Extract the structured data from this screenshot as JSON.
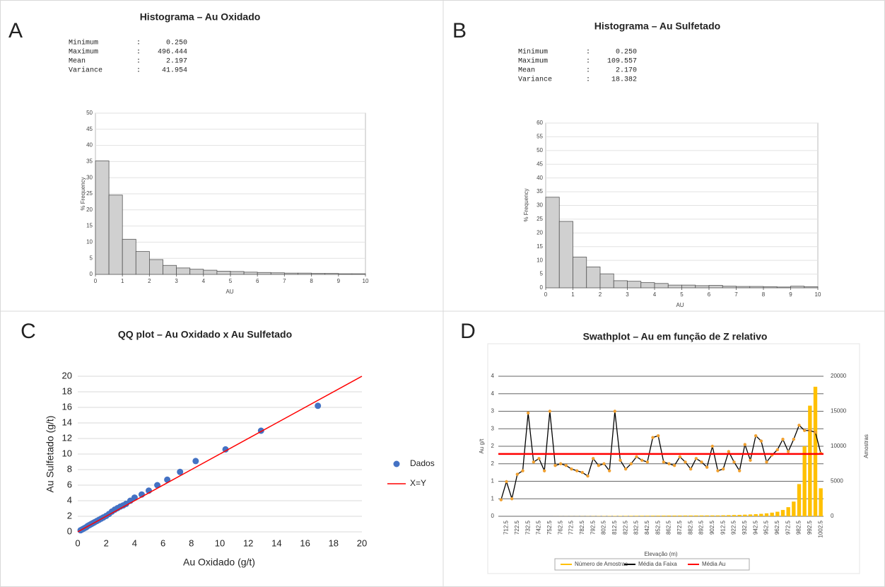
{
  "chart_data": [
    {
      "type": "histogram",
      "panel": "A",
      "title": "Histograma – Au Oxidado",
      "stats": [
        "Minimum         :      0.250",
        "Maximum         :    496.444",
        "Mean            :      2.197",
        "Variance        :     41.954"
      ],
      "x_label": "AU",
      "y_label": "% Frequency",
      "color": "#d0d0d0",
      "bins": [
        0,
        0.5,
        1,
        1.5,
        2,
        2.5,
        3,
        3.5,
        4,
        4.5,
        5,
        5.5,
        6,
        6.5,
        7,
        7.5,
        8,
        8.5,
        9,
        9.5,
        10
      ],
      "values": [
        35.2,
        24.6,
        10.9,
        7.1,
        4.6,
        2.8,
        2.0,
        1.6,
        1.3,
        1.0,
        0.9,
        0.7,
        0.6,
        0.5,
        0.4,
        0.4,
        0.3,
        0.3,
        0.2,
        0.2
      ],
      "xlim": [
        0,
        10
      ],
      "xticks": [
        0,
        1,
        2,
        3,
        4,
        5,
        6,
        7,
        8,
        9,
        10
      ],
      "ylim": [
        0,
        50
      ],
      "yticks": [
        0,
        5,
        10,
        15,
        20,
        25,
        30,
        35,
        40,
        45,
        50
      ],
      "grid": true
    },
    {
      "type": "histogram",
      "panel": "B",
      "title": "Histograma – Au Sulfetado",
      "stats": [
        "Minimum         :      0.250",
        "Maximum         :    109.557",
        "Mean            :      2.170",
        "Variance        :     18.382"
      ],
      "x_label": "AU",
      "y_label": "% Frequency",
      "color": "#d0d0d0",
      "bins": [
        0,
        0.5,
        1,
        1.5,
        2,
        2.5,
        3,
        3.5,
        4,
        4.5,
        5,
        5.5,
        6,
        6.5,
        7,
        7.5,
        8,
        8.5,
        9,
        9.5,
        10
      ],
      "values": [
        33.0,
        24.2,
        11.2,
        7.6,
        5.1,
        2.6,
        2.4,
        1.9,
        1.6,
        1.0,
        1.0,
        0.8,
        0.9,
        0.6,
        0.5,
        0.5,
        0.4,
        0.3,
        0.6,
        0.4
      ],
      "xlim": [
        0,
        10
      ],
      "xticks": [
        0,
        1,
        2,
        3,
        4,
        5,
        6,
        7,
        8,
        9,
        10
      ],
      "ylim": [
        0,
        60
      ],
      "yticks": [
        0,
        5,
        10,
        15,
        20,
        25,
        30,
        35,
        40,
        45,
        50,
        55,
        60
      ],
      "grid": true
    },
    {
      "type": "scatter",
      "panel": "C",
      "title": "QQ plot – Au Oxidado x Au Sulfetado",
      "x_label": "Au Oxidado (g/t)",
      "y_label": "Au Sulfetado (g/t)",
      "xlim": [
        0,
        20
      ],
      "xticks": [
        0,
        2,
        4,
        6,
        8,
        10,
        12,
        14,
        16,
        18,
        20
      ],
      "ylim": [
        0,
        20
      ],
      "yticks": [
        0,
        2,
        4,
        6,
        8,
        10,
        12,
        14,
        16,
        18,
        20
      ],
      "grid": true,
      "series": [
        {
          "name": "Dados",
          "color": "#4472c4",
          "style": "markers",
          "x": [
            0.2,
            0.3,
            0.4,
            0.5,
            0.6,
            0.7,
            0.8,
            0.9,
            1.0,
            1.1,
            1.2,
            1.35,
            1.5,
            1.65,
            1.8,
            2.0,
            2.2,
            2.4,
            2.6,
            2.8,
            3.0,
            3.2,
            3.4,
            3.7,
            4.0,
            4.5,
            5.0,
            5.6,
            6.3,
            7.2,
            8.3,
            10.4,
            12.9,
            16.9
          ],
          "y": [
            0.2,
            0.3,
            0.4,
            0.5,
            0.6,
            0.75,
            0.85,
            0.95,
            1.05,
            1.15,
            1.25,
            1.4,
            1.55,
            1.7,
            1.85,
            2.05,
            2.3,
            2.6,
            2.85,
            3.05,
            3.25,
            3.4,
            3.6,
            4.0,
            4.4,
            4.8,
            5.3,
            6.0,
            6.7,
            7.7,
            9.1,
            10.6,
            13.0,
            16.2
          ]
        },
        {
          "name": "X=Y",
          "color": "#ff0000",
          "style": "line",
          "x": [
            0,
            20
          ],
          "y": [
            0,
            20
          ]
        }
      ]
    },
    {
      "type": "combo",
      "panel": "D",
      "title": "Swathplot – Au em função de Z relativo",
      "x_label": "Elevação (m)",
      "y_label": "Au g/t",
      "y2_label": "Amostras",
      "categories": [
        null,
        "712.5",
        null,
        "722.5",
        null,
        "732.5",
        null,
        "742.5",
        null,
        "752.5",
        null,
        "762.5",
        null,
        "772.5",
        null,
        "782.5",
        null,
        "792.5",
        null,
        "802.5",
        null,
        "812.5",
        null,
        "822.5",
        null,
        "832.5",
        null,
        "842.5",
        null,
        "852.5",
        null,
        "862.5",
        null,
        "872.5",
        null,
        "882.5",
        null,
        "892.5",
        null,
        "902.5",
        null,
        "912.5",
        null,
        "922.5",
        null,
        "932.5",
        null,
        "942.5",
        null,
        "952.5",
        null,
        "962.5",
        null,
        "972.5",
        null,
        "982.5",
        null,
        "992.5",
        null,
        "1002.5"
      ],
      "ylim": [
        0,
        4
      ],
      "yticks": [
        0,
        {
          "value": 0.5,
          "label": "1"
        },
        1,
        {
          "value": 1.5,
          "label": "2"
        },
        2,
        {
          "value": 2.5,
          "label": "3"
        },
        3,
        {
          "value": 3.5,
          "label": "4"
        },
        4
      ],
      "y2lim": [
        0,
        20000
      ],
      "y2ticks": [
        0,
        5000,
        10000,
        15000,
        20000
      ],
      "grid": true,
      "series": [
        {
          "name": "Número de Amostras",
          "type": "bar",
          "axis": "y2",
          "color": "#ffc000",
          "values": [
            0,
            0,
            0,
            0,
            0,
            0,
            0,
            0,
            0,
            0,
            5,
            8,
            10,
            12,
            15,
            20,
            25,
            30,
            35,
            40,
            45,
            50,
            55,
            60,
            65,
            70,
            75,
            80,
            85,
            90,
            95,
            100,
            100,
            105,
            110,
            110,
            115,
            115,
            120,
            120,
            120,
            140,
            160,
            180,
            200,
            230,
            260,
            300,
            350,
            420,
            520,
            650,
            900,
            1300,
            2100,
            4600,
            10000,
            15800,
            18500,
            4000
          ]
        },
        {
          "name": "Média da Faixa",
          "type": "line",
          "color": "#000000",
          "marker_color": "#f0a030",
          "values": [
            0.47,
            0.99,
            0.5,
            1.2,
            1.3,
            2.95,
            1.55,
            1.65,
            1.3,
            3.0,
            1.45,
            1.5,
            1.45,
            1.35,
            1.3,
            1.25,
            1.15,
            1.65,
            1.45,
            1.5,
            1.3,
            3.0,
            1.6,
            1.35,
            1.5,
            1.7,
            1.6,
            1.55,
            2.25,
            2.3,
            1.55,
            1.5,
            1.45,
            1.7,
            1.55,
            1.35,
            1.65,
            1.55,
            1.4,
            2.0,
            1.3,
            1.35,
            1.85,
            1.55,
            1.3,
            2.05,
            1.6,
            2.3,
            2.15,
            1.55,
            1.75,
            1.9,
            2.2,
            1.85,
            2.2,
            2.6,
            2.45,
            2.45,
            2.4,
            1.8
          ]
        },
        {
          "name": "Média Au",
          "type": "hline",
          "color": "#ff0000",
          "value": 1.78
        }
      ]
    }
  ]
}
